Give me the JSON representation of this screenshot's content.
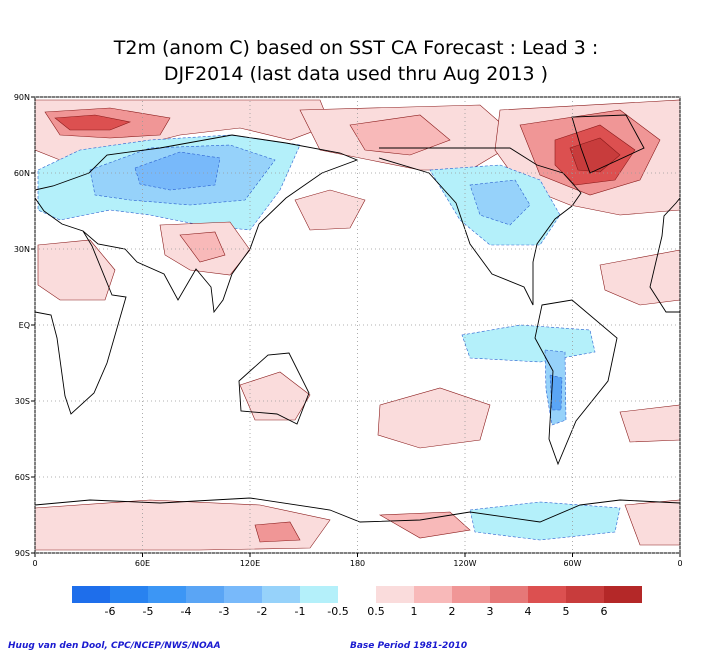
{
  "title": {
    "line1": "T2m (anom C) based on SST CA Forecast : Lead 3 :",
    "line2": "DJF2014 (last data used thru Aug 2013 )"
  },
  "map": {
    "lon_range": [
      0,
      360
    ],
    "lat_range": [
      -90,
      90
    ],
    "lon_ticks": [
      {
        "value": 0,
        "label": "0"
      },
      {
        "value": 60,
        "label": "60E"
      },
      {
        "value": 120,
        "label": "120E"
      },
      {
        "value": 180,
        "label": "180"
      },
      {
        "value": 240,
        "label": "120W"
      },
      {
        "value": 300,
        "label": "60W"
      },
      {
        "value": 360,
        "label": "0"
      }
    ],
    "lat_ticks": [
      {
        "value": 90,
        "label": "90N"
      },
      {
        "value": 60,
        "label": "60N"
      },
      {
        "value": 30,
        "label": "30N"
      },
      {
        "value": 0,
        "label": "EQ"
      },
      {
        "value": -30,
        "label": "30S"
      },
      {
        "value": -60,
        "label": "60S"
      },
      {
        "value": -90,
        "label": "90S"
      }
    ]
  },
  "colorbar": {
    "levels": [
      -6,
      -5,
      -4,
      -3,
      -2,
      -1,
      -0.5,
      0.5,
      1,
      2,
      3,
      4,
      5,
      6
    ],
    "colors": [
      "#1e6eeb",
      "#2882f0",
      "#3c96f5",
      "#5aa5f5",
      "#78b9fa",
      "#96d2fa",
      "#b4f0fa",
      "#ffffff",
      "#fadcdc",
      "#f8b9b9",
      "#f09696",
      "#e67878",
      "#dc5050",
      "#c83c3c",
      "#b42828"
    ]
  },
  "footer": {
    "credit": "Huug van den Dool, CPC/NCEP/NWS/NOAA",
    "base_period": "Base Period 1981-2010"
  }
}
